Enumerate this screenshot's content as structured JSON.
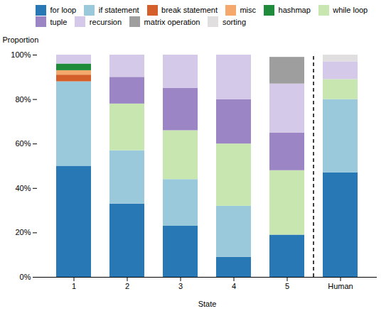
{
  "chart_data": {
    "type": "bar",
    "stacked": true,
    "categories": [
      "1",
      "2",
      "3",
      "4",
      "5",
      "Human"
    ],
    "series": [
      {
        "name": "for loop",
        "color": "#2878b5",
        "values": [
          0.5,
          0.33,
          0.23,
          0.09,
          0.19,
          0.47
        ]
      },
      {
        "name": "if statement",
        "color": "#9ac9db",
        "values": [
          0.38,
          0.24,
          0.21,
          0.23,
          0.0,
          0.33
        ]
      },
      {
        "name": "break statement",
        "color": "#d55f2a",
        "values": [
          0.03,
          0.0,
          0.0,
          0.0,
          0.0,
          0.0
        ]
      },
      {
        "name": "misc",
        "color": "#f5a86c",
        "values": [
          0.02,
          0.0,
          0.0,
          0.0,
          0.0,
          0.0
        ]
      },
      {
        "name": "hashmap",
        "color": "#1e8c3a",
        "values": [
          0.03,
          0.0,
          0.0,
          0.0,
          0.0,
          0.0
        ]
      },
      {
        "name": "while loop",
        "color": "#c8e6b0",
        "values": [
          0.0,
          0.21,
          0.22,
          0.28,
          0.29,
          0.09
        ]
      },
      {
        "name": "tuple",
        "color": "#9b85c4",
        "values": [
          0.0,
          0.12,
          0.19,
          0.2,
          0.17,
          0.0
        ]
      },
      {
        "name": "recursion",
        "color": "#d4c9e8",
        "values": [
          0.04,
          0.1,
          0.15,
          0.2,
          0.22,
          0.08
        ]
      },
      {
        "name": "matrix operation",
        "color": "#9e9e9e",
        "values": [
          0.0,
          0.0,
          0.0,
          0.0,
          0.12,
          0.0
        ]
      },
      {
        "name": "sorting",
        "color": "#e0dede",
        "values": [
          0.0,
          0.0,
          0.0,
          0.0,
          0.0,
          0.03
        ]
      }
    ],
    "xlabel": "State",
    "ylabel": "Proportion",
    "ylim": [
      0.0,
      1.0
    ],
    "yticks": [
      {
        "value": 0.0,
        "label": "0%"
      },
      {
        "value": 0.2,
        "label": "20%"
      },
      {
        "value": 0.4,
        "label": "40%"
      },
      {
        "value": 0.6,
        "label": "60%"
      },
      {
        "value": 0.8,
        "label": "80%"
      },
      {
        "value": 1.0,
        "label": "100%"
      }
    ],
    "grid": false,
    "legend": "top"
  }
}
